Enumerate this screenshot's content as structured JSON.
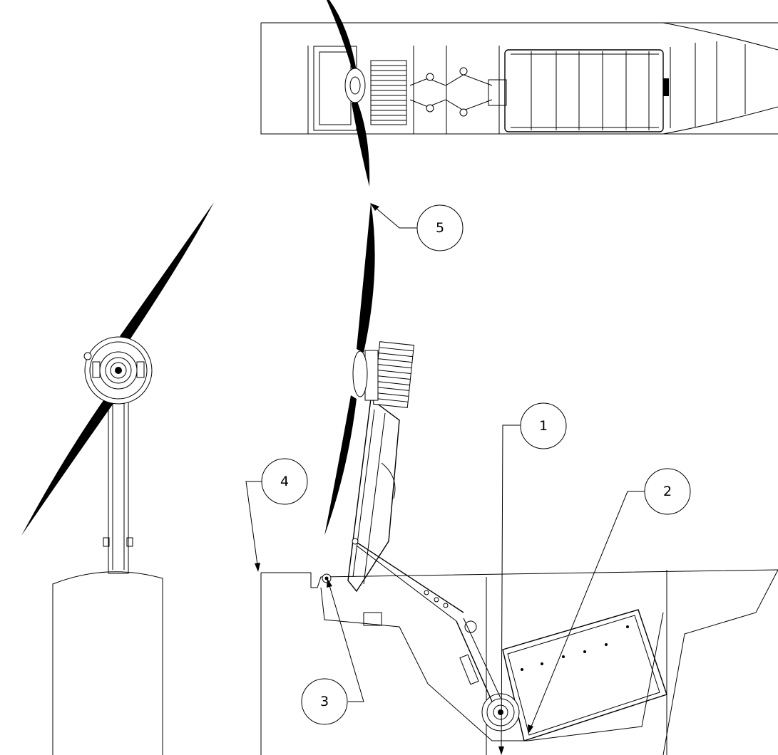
{
  "callouts": [
    {
      "id": "1",
      "label": "1"
    },
    {
      "id": "2",
      "label": "2"
    },
    {
      "id": "3",
      "label": "3"
    },
    {
      "id": "4",
      "label": "4"
    },
    {
      "id": "5",
      "label": "5"
    }
  ],
  "colors": {
    "line": "#000000",
    "background": "#ffffff"
  }
}
